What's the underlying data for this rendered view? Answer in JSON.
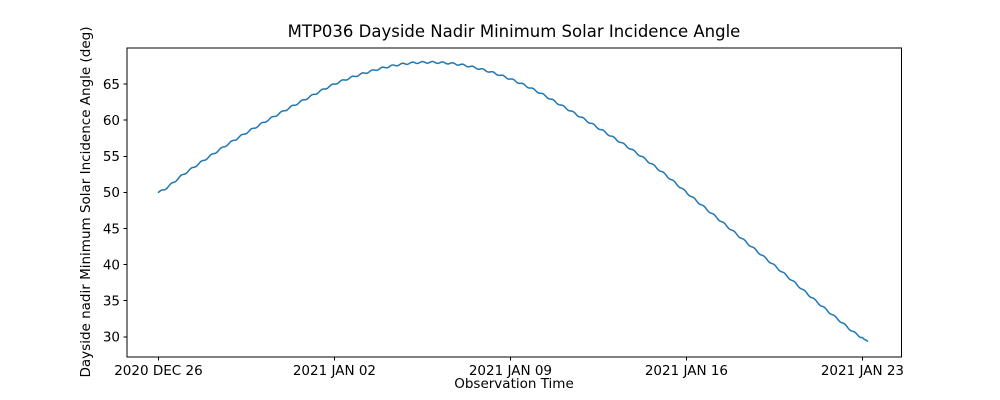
{
  "title": "MTP036 Dayside Nadir Minimum Solar Incidence Angle",
  "chart_data": {
    "type": "line",
    "title": "MTP036 Dayside Nadir Minimum Solar Incidence Angle",
    "xlabel": "Observation Time",
    "ylabel": "Dayside nadir Minimum Solar Incidence Angle (deg)",
    "x_unit": "days since 2020 DEC 26",
    "x_tick_positions_days": [
      0,
      7,
      14,
      21,
      28
    ],
    "x_tick_labels": [
      "2020 DEC 26",
      "2021 JAN 02",
      "2021 JAN 09",
      "2021 JAN 16",
      "2021 JAN 23"
    ],
    "y_ticks": [
      30,
      35,
      40,
      45,
      50,
      55,
      60,
      65
    ],
    "xlim_days": [
      -1.25,
      29.55
    ],
    "ylim": [
      27.2,
      70.0
    ],
    "grid": false,
    "legend": "none",
    "line_color": "#1f77b4",
    "line_width": 1.5,
    "series": [
      {
        "name": "dayside-nadir-min-solar-incidence-angle",
        "x_days": [
          0,
          1,
          2,
          3,
          4,
          5,
          6,
          7,
          8,
          9,
          10,
          11,
          12,
          13,
          14,
          15,
          16,
          17,
          18,
          19,
          20,
          21,
          22,
          23,
          24,
          25,
          26,
          27,
          28,
          28.2
        ],
        "values": [
          50.0,
          52.5,
          54.9,
          57.2,
          59.3,
          61.3,
          63.2,
          65.0,
          66.3,
          67.3,
          67.9,
          68.0,
          67.7,
          66.9,
          65.7,
          64.1,
          62.1,
          60.0,
          57.8,
          55.5,
          52.9,
          50.0,
          47.1,
          44.2,
          41.3,
          38.4,
          35.4,
          32.5,
          29.9,
          29.4
        ]
      }
    ],
    "peak": {
      "t_days": 10.8,
      "value": 68.0
    },
    "start": {
      "label": "2020 DEC 26",
      "value": 50.0
    },
    "end": {
      "t_days": 28.2,
      "value": 29.4
    },
    "texture": {
      "wiggle_amplitude_deg": 0.12,
      "wiggle_period_days": 0.4
    }
  }
}
